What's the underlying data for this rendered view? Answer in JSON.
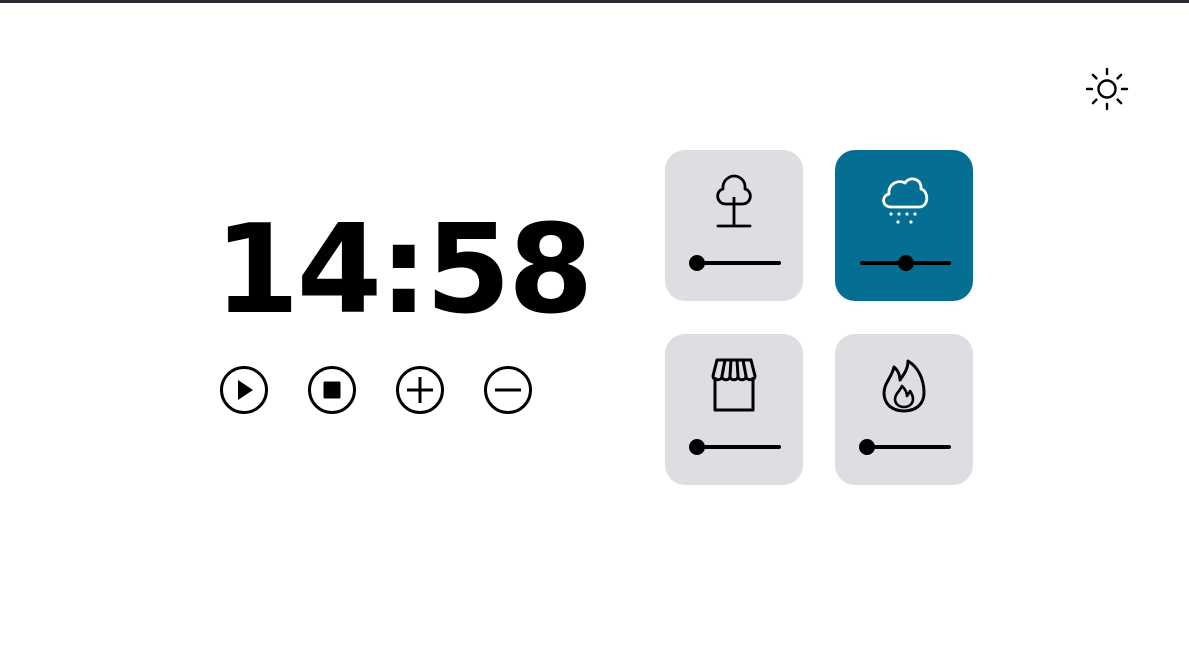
{
  "app": {
    "theme_toggle_icon": "sun-icon"
  },
  "clock": {
    "time": "14:58"
  },
  "controls": [
    {
      "name": "play",
      "icon": "play-circle-icon"
    },
    {
      "name": "stop",
      "icon": "stop-circle-icon"
    },
    {
      "name": "increase",
      "icon": "plus-circle-icon"
    },
    {
      "name": "decrease",
      "icon": "minus-circle-icon"
    }
  ],
  "sounds": [
    {
      "name": "forest",
      "icon": "tree-icon",
      "active": false,
      "volume": 0.0
    },
    {
      "name": "rain",
      "icon": "cloud-rain-icon",
      "active": true,
      "volume": 0.5
    },
    {
      "name": "coffee-shop",
      "icon": "storefront-icon",
      "active": false,
      "volume": 0.0
    },
    {
      "name": "fireplace",
      "icon": "flame-icon",
      "active": false,
      "volume": 0.0
    }
  ],
  "colors": {
    "tile_bg": "#dedee2",
    "tile_active_bg": "#056f93",
    "top_bar": "#272c33",
    "text": "#000000"
  }
}
